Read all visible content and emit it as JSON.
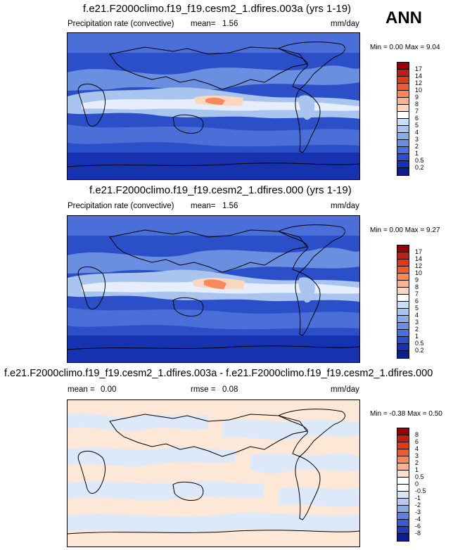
{
  "season": "ANN",
  "panels": [
    {
      "title": "f.e21.F2000climo.f19_f19.cesm2_1.dfires.003a (yrs 1-19)",
      "variable": "Precipitation rate (convective)",
      "stat1_label": "mean=",
      "stat1_value": "1.56",
      "units": "mm/day",
      "minmax_text": "Min =  0.00 Max =  9.04",
      "colorbar_labels": [
        "17",
        "14",
        "12",
        "10",
        "9",
        "8",
        "7",
        "6",
        "5",
        "4",
        "3",
        "2",
        "1",
        "0.5",
        "0.2"
      ],
      "colorbar_colors": [
        "#990000",
        "#c01f14",
        "#dd3a1a",
        "#ee5c2e",
        "#f78a5a",
        "#fbb291",
        "#fbd6c0",
        "#ffffff",
        "#c9ddf6",
        "#a8c4ef",
        "#8aabe8",
        "#6b8fe0",
        "#4a6fd8",
        "#2a4fc8",
        "#1732b0",
        "#0a1e90"
      ]
    },
    {
      "title": "f.e21.F2000climo.f19_f19.cesm2_1.dfires.000 (yrs 1-19)",
      "variable": "Precipitation rate (convective)",
      "stat1_label": "mean=",
      "stat1_value": "1.56",
      "units": "mm/day",
      "minmax_text": "Min =  0.00 Max =  9.27",
      "colorbar_labels": [
        "17",
        "14",
        "12",
        "10",
        "9",
        "8",
        "7",
        "6",
        "5",
        "4",
        "3",
        "2",
        "1",
        "0.5",
        "0.2"
      ],
      "colorbar_colors": [
        "#990000",
        "#c01f14",
        "#dd3a1a",
        "#ee5c2e",
        "#f78a5a",
        "#fbb291",
        "#fbd6c0",
        "#ffffff",
        "#c9ddf6",
        "#a8c4ef",
        "#8aabe8",
        "#6b8fe0",
        "#4a6fd8",
        "#2a4fc8",
        "#1732b0",
        "#0a1e90"
      ]
    },
    {
      "title": "f.e21.F2000climo.f19_f19.cesm2_1.dfires.003a - f.e21.F2000climo.f19_f19.cesm2_1.dfires.000",
      "stat1_label": "mean =",
      "stat1_value": "0.00",
      "stat2_label": "rmse =",
      "stat2_value": "0.08",
      "units": "mm/day",
      "minmax_text": "Min = -0.38 Max =  0.50",
      "colorbar_labels": [
        "8",
        "6",
        "4",
        "3",
        "2",
        "1",
        "0.5",
        "0",
        "-0.5",
        "-1",
        "-2",
        "-3",
        "-4",
        "-6",
        "-8"
      ],
      "colorbar_colors": [
        "#990000",
        "#c01f14",
        "#dd3a1a",
        "#ee5c2e",
        "#f78a5a",
        "#fbb291",
        "#fde0cc",
        "#ffffff",
        "#ffffff",
        "#d6e4f6",
        "#b3cbf0",
        "#8aabe8",
        "#5f83dd",
        "#3a5ccf",
        "#1e3cb8",
        "#0a1e90"
      ]
    }
  ]
}
